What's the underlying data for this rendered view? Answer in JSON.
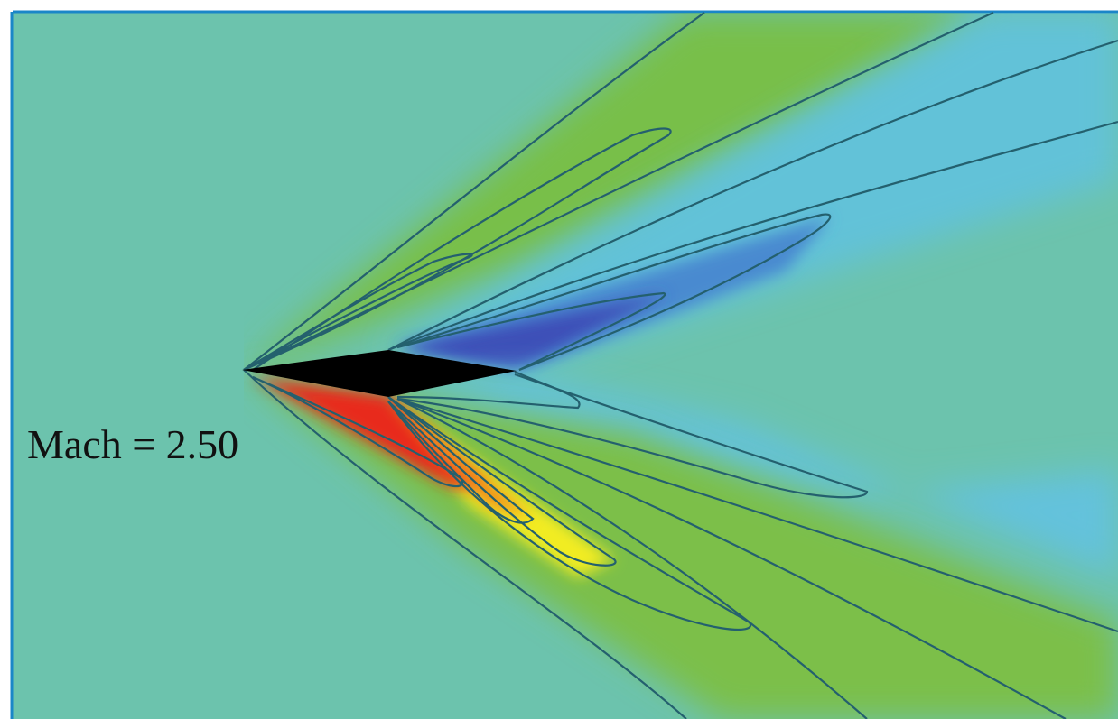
{
  "label": "Mach = 2.50"
}
